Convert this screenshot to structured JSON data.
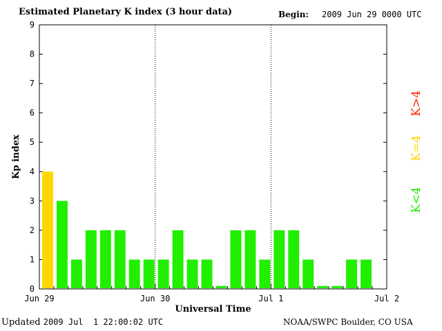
{
  "header": {
    "title": "Estimated Planetary K index (3 hour data)",
    "begin_label": "Begin:",
    "begin_value": "2009 Jun 29 0000 UTC"
  },
  "footer": {
    "updated_label": "Updated",
    "updated_value": "2009 Jul  1 22:00:02 UTC",
    "source": "NOAA/SWPC Boulder, CO USA"
  },
  "legend": [
    {
      "label": "K>4",
      "color": "#ff2a00"
    },
    {
      "label": "K=4",
      "color": "#ffd700"
    },
    {
      "label": "K<4",
      "color": "#22ee00"
    }
  ],
  "chart_data": {
    "type": "bar",
    "title": "Estimated Planetary K index (3 hour data)",
    "xlabel": "Universal Time",
    "ylabel": "Kp index",
    "ylim": [
      0,
      9
    ],
    "yticks": [
      0,
      1,
      2,
      3,
      4,
      5,
      6,
      7,
      8,
      9
    ],
    "x_tick_labels": [
      "Jun 29",
      "Jun 30",
      "Jul 1",
      "Jul 2"
    ],
    "day_separators": [
      "Jun 30",
      "Jul 1"
    ],
    "grid": false,
    "bars_per_day": 8,
    "days": 3,
    "values": [
      4,
      3,
      1,
      2,
      2,
      2,
      1,
      1,
      1,
      2,
      1,
      1,
      0.1,
      2,
      2,
      1,
      2,
      2,
      1,
      0.1,
      0.1,
      1,
      1
    ],
    "colors": {
      "below4": "#22ee00",
      "equal4": "#ffd700",
      "above4": "#ff2a00"
    }
  }
}
